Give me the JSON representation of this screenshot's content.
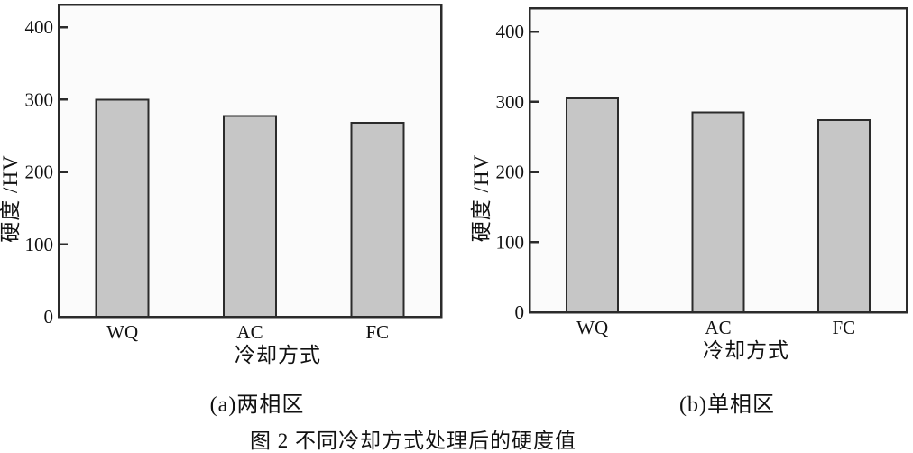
{
  "figure": {
    "caption": "图 2 不同冷却方式处理后的硬度值"
  },
  "colors": {
    "page_bg": "#ffffff",
    "plot_bg": "#fbfbfb",
    "bar_fill": "#c6c6c6",
    "bar_stroke": "#2b2b2b",
    "axis": "#2b2b2b",
    "text": "#111111"
  },
  "chart_data": [
    {
      "type": "bar",
      "title": "(a)两相区",
      "categories": [
        "WQ",
        "AC",
        "FC"
      ],
      "values": [
        300,
        277,
        268
      ],
      "xlabel": "冷却方式",
      "ylabel": "硬度 /HV",
      "ylim": [
        0,
        430
      ],
      "yticks": [
        0,
        100,
        200,
        300,
        400
      ],
      "grid": false,
      "legend": "none"
    },
    {
      "type": "bar",
      "title": "(b)单相区",
      "categories": [
        "WQ",
        "AC",
        "FC"
      ],
      "values": [
        305,
        285,
        274
      ],
      "xlabel": "冷却方式",
      "ylabel": "硬度 /HV",
      "ylim": [
        0,
        430
      ],
      "yticks": [
        0,
        100,
        200,
        300,
        400
      ],
      "grid": false,
      "legend": "none"
    }
  ]
}
